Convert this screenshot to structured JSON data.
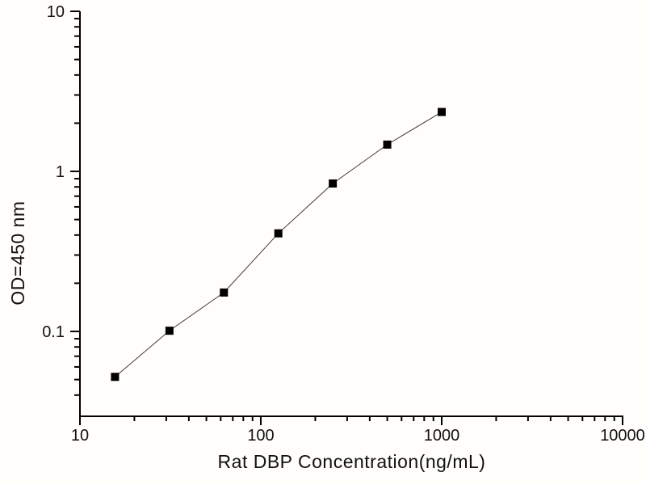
{
  "figure": {
    "background_color": "#fffefb",
    "kind": "ELISA standard curve, log-log scatter with connecting line"
  },
  "chart_data": {
    "type": "scatter",
    "series": [
      {
        "name": "standard-curve",
        "x": [
          15.625,
          31.25,
          62.5,
          125,
          250,
          500,
          1000
        ],
        "y": [
          0.052,
          0.101,
          0.175,
          0.41,
          0.84,
          1.47,
          2.35
        ]
      }
    ],
    "title": "",
    "xlabel": "Rat DBP Concentration(ng/mL)",
    "ylabel": "OD=450 nm",
    "x_scale": "log",
    "y_scale": "log",
    "xlim": [
      10,
      10000
    ],
    "ylim": [
      0.03,
      10
    ],
    "x_major_ticks": [
      10,
      100,
      1000,
      10000
    ],
    "x_tick_labels": [
      "10",
      "100",
      "1000",
      "10000"
    ],
    "y_major_ticks": [
      10,
      1,
      0.1
    ],
    "y_tick_labels": [
      "10",
      "1",
      "0.1"
    ],
    "grid": "off",
    "legend": "none",
    "marker": "filled-square",
    "colors": {
      "marker": "#000000",
      "line": "#3a3a3a",
      "axis": "#000000",
      "text": "#111111"
    }
  }
}
